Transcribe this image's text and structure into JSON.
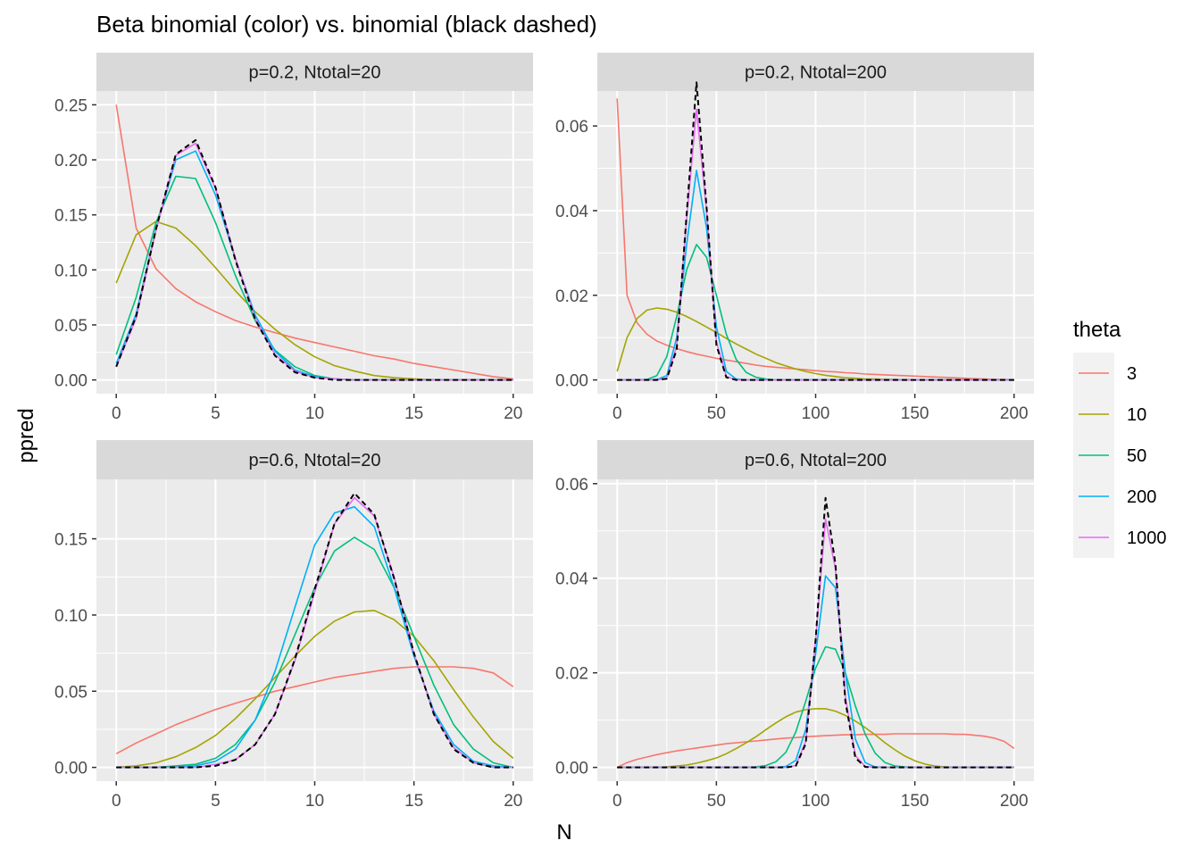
{
  "title": "Beta binomial (color) vs. binomial (black dashed)",
  "xlabel": "N",
  "ylabel": "ppred",
  "legend": {
    "title": "theta",
    "position": "right",
    "entries": [
      {
        "label": "3",
        "color": "#F8766D"
      },
      {
        "label": "10",
        "color": "#A3A500"
      },
      {
        "label": "50",
        "color": "#00BF7D"
      },
      {
        "label": "200",
        "color": "#00B0F6"
      },
      {
        "label": "1000",
        "color": "#E76BF3"
      }
    ]
  },
  "reference_line": {
    "label": "binomial",
    "color": "#000000",
    "style": "dashed"
  },
  "chart_data": [
    {
      "type": "line",
      "facet": "p=0.2, Ntotal=20",
      "p": 0.2,
      "n": 20,
      "xlim": [
        0,
        20
      ],
      "ylim": [
        0,
        0.25
      ],
      "x_ticks": [
        0,
        5,
        10,
        15,
        20
      ],
      "x_tick_labels": [
        "0",
        "5",
        "10",
        "15",
        "20"
      ],
      "y_ticks": [
        0,
        0.05,
        0.1,
        0.15,
        0.2,
        0.25
      ],
      "y_tick_labels": [
        "0.00",
        "0.05",
        "0.10",
        "0.15",
        "0.20",
        "0.25"
      ],
      "grid": true,
      "series": [
        {
          "name": "3",
          "theta": 3,
          "x_step": 1,
          "values": [
            0.25,
            0.138,
            0.101,
            0.083,
            0.071,
            0.062,
            0.054,
            0.048,
            0.043,
            0.038,
            0.034,
            0.03,
            0.026,
            0.022,
            0.019,
            0.015,
            0.012,
            0.009,
            0.006,
            0.003,
            0.001
          ]
        },
        {
          "name": "10",
          "theta": 10,
          "x_step": 1,
          "values": [
            0.088,
            0.132,
            0.144,
            0.138,
            0.122,
            0.102,
            0.081,
            0.062,
            0.046,
            0.032,
            0.021,
            0.013,
            0.008,
            0.004,
            0.002,
            0.001,
            0.0,
            0.0,
            0.0,
            0.0,
            0.0
          ]
        },
        {
          "name": "50",
          "theta": 50,
          "x_step": 1,
          "values": [
            0.023,
            0.075,
            0.143,
            0.185,
            0.183,
            0.143,
            0.095,
            0.054,
            0.027,
            0.012,
            0.004,
            0.001,
            0.0,
            0.0,
            0.0,
            0.0,
            0.0,
            0.0,
            0.0,
            0.0,
            0.0
          ]
        },
        {
          "name": "200",
          "theta": 200,
          "x_step": 1,
          "values": [
            0.015,
            0.06,
            0.137,
            0.2,
            0.208,
            0.168,
            0.11,
            0.059,
            0.026,
            0.009,
            0.003,
            0.001,
            0.0,
            0.0,
            0.0,
            0.0,
            0.0,
            0.0,
            0.0,
            0.0,
            0.0
          ]
        },
        {
          "name": "1000",
          "theta": 1000,
          "x_step": 1,
          "values": [
            0.012,
            0.056,
            0.136,
            0.204,
            0.215,
            0.174,
            0.111,
            0.056,
            0.023,
            0.008,
            0.002,
            0.001,
            0.0,
            0.0,
            0.0,
            0.0,
            0.0,
            0.0,
            0.0,
            0.0,
            0.0
          ]
        },
        {
          "name": "binomial",
          "x_step": 1,
          "values": [
            0.012,
            0.058,
            0.137,
            0.205,
            0.218,
            0.175,
            0.109,
            0.055,
            0.022,
            0.007,
            0.002,
            0.0,
            0.0,
            0.0,
            0.0,
            0.0,
            0.0,
            0.0,
            0.0,
            0.0,
            0.0
          ]
        }
      ]
    },
    {
      "type": "line",
      "facet": "p=0.2, Ntotal=200",
      "p": 0.2,
      "n": 200,
      "xlim": [
        0,
        200
      ],
      "ylim": [
        0,
        0.065
      ],
      "x_ticks": [
        0,
        50,
        100,
        150,
        200
      ],
      "x_tick_labels": [
        "0",
        "50",
        "100",
        "150",
        "200"
      ],
      "y_ticks": [
        0,
        0.02,
        0.04,
        0.06
      ],
      "y_tick_labels": [
        "0.00",
        "0.02",
        "0.04",
        "0.06"
      ],
      "grid": true,
      "series": [
        {
          "name": "3",
          "theta": 3,
          "x_step": 5,
          "values": [
            0.0665,
            0.02,
            0.0135,
            0.0108,
            0.0092,
            0.0082,
            0.0074,
            0.0067,
            0.0061,
            0.0056,
            0.0051,
            0.0047,
            0.0043,
            0.0039,
            0.0035,
            0.0032,
            0.003,
            0.0028,
            0.0026,
            0.0024,
            0.0022,
            0.002,
            0.0019,
            0.0017,
            0.0016,
            0.0014,
            0.0013,
            0.0012,
            0.0011,
            0.001,
            0.0009,
            0.0008,
            0.0007,
            0.0006,
            0.0005,
            0.0004,
            0.0003,
            0.0002,
            0.0001,
            0.0001,
            0.0
          ]
        },
        {
          "name": "10",
          "theta": 10,
          "x_step": 5,
          "values": [
            0.002,
            0.01,
            0.0145,
            0.0165,
            0.017,
            0.0167,
            0.016,
            0.015,
            0.0138,
            0.0125,
            0.0112,
            0.0098,
            0.0085,
            0.0073,
            0.0061,
            0.0051,
            0.0041,
            0.0033,
            0.0026,
            0.002,
            0.0015,
            0.0011,
            0.0008,
            0.0005,
            0.0004,
            0.0002,
            0.0002,
            0.0001,
            0.0001,
            0.0,
            0.0,
            0.0,
            0.0,
            0.0,
            0.0,
            0.0,
            0.0,
            0.0,
            0.0,
            0.0,
            0.0
          ]
        },
        {
          "name": "50",
          "theta": 50,
          "x_step": 5,
          "values": [
            0.0,
            0.0,
            0.0,
            0.0001,
            0.001,
            0.0055,
            0.015,
            0.026,
            0.032,
            0.029,
            0.02,
            0.0108,
            0.0048,
            0.0018,
            0.0006,
            0.0002,
            0.0,
            0.0,
            0.0,
            0.0,
            0.0,
            0.0,
            0.0,
            0.0,
            0.0,
            0.0,
            0.0,
            0.0,
            0.0,
            0.0,
            0.0,
            0.0,
            0.0,
            0.0,
            0.0,
            0.0,
            0.0,
            0.0,
            0.0,
            0.0,
            0.0
          ]
        },
        {
          "name": "200",
          "theta": 200,
          "x_step": 5,
          "values": [
            0.0,
            0.0,
            0.0,
            0.0,
            0.0001,
            0.001,
            0.01,
            0.032,
            0.0495,
            0.036,
            0.0125,
            0.002,
            0.0002,
            0.0,
            0.0,
            0.0,
            0.0,
            0.0,
            0.0,
            0.0,
            0.0,
            0.0,
            0.0,
            0.0,
            0.0,
            0.0,
            0.0,
            0.0,
            0.0,
            0.0,
            0.0,
            0.0,
            0.0,
            0.0,
            0.0,
            0.0,
            0.0,
            0.0,
            0.0,
            0.0,
            0.0
          ]
        },
        {
          "name": "1000",
          "theta": 1000,
          "x_step": 5,
          "values": [
            0.0,
            0.0,
            0.0,
            0.0,
            0.0,
            0.0004,
            0.008,
            0.038,
            0.064,
            0.04,
            0.009,
            0.0008,
            0.0,
            0.0,
            0.0,
            0.0,
            0.0,
            0.0,
            0.0,
            0.0,
            0.0,
            0.0,
            0.0,
            0.0,
            0.0,
            0.0,
            0.0,
            0.0,
            0.0,
            0.0,
            0.0,
            0.0,
            0.0,
            0.0,
            0.0,
            0.0,
            0.0,
            0.0,
            0.0,
            0.0,
            0.0
          ]
        },
        {
          "name": "binomial",
          "x_step": 5,
          "values": [
            0.0,
            0.0,
            0.0,
            0.0,
            0.0,
            0.0003,
            0.0072,
            0.039,
            0.0703,
            0.041,
            0.0082,
            0.0006,
            0.0,
            0.0,
            0.0,
            0.0,
            0.0,
            0.0,
            0.0,
            0.0,
            0.0,
            0.0,
            0.0,
            0.0,
            0.0,
            0.0,
            0.0,
            0.0,
            0.0,
            0.0,
            0.0,
            0.0,
            0.0,
            0.0,
            0.0,
            0.0,
            0.0,
            0.0,
            0.0,
            0.0,
            0.0
          ]
        }
      ]
    },
    {
      "type": "line",
      "facet": "p=0.6, Ntotal=20",
      "p": 0.6,
      "n": 20,
      "xlim": [
        0,
        20
      ],
      "ylim": [
        0,
        0.18
      ],
      "x_ticks": [
        0,
        5,
        10,
        15,
        20
      ],
      "x_tick_labels": [
        "0",
        "5",
        "10",
        "15",
        "20"
      ],
      "y_ticks": [
        0,
        0.05,
        0.1,
        0.15
      ],
      "y_tick_labels": [
        "0.00",
        "0.05",
        "0.10",
        "0.15"
      ],
      "grid": true,
      "series": [
        {
          "name": "3",
          "theta": 3,
          "x_step": 1,
          "values": [
            0.009,
            0.016,
            0.022,
            0.028,
            0.033,
            0.038,
            0.042,
            0.046,
            0.05,
            0.053,
            0.056,
            0.059,
            0.061,
            0.063,
            0.065,
            0.066,
            0.066,
            0.066,
            0.065,
            0.062,
            0.053
          ]
        },
        {
          "name": "10",
          "theta": 10,
          "x_step": 1,
          "values": [
            0.0,
            0.001,
            0.003,
            0.007,
            0.013,
            0.021,
            0.032,
            0.045,
            0.059,
            0.073,
            0.086,
            0.096,
            0.102,
            0.103,
            0.097,
            0.086,
            0.07,
            0.051,
            0.033,
            0.017,
            0.006
          ]
        },
        {
          "name": "50",
          "theta": 50,
          "x_step": 1,
          "values": [
            0.0,
            0.0,
            0.0,
            0.001,
            0.002,
            0.006,
            0.015,
            0.031,
            0.056,
            0.087,
            0.118,
            0.142,
            0.151,
            0.143,
            0.118,
            0.086,
            0.054,
            0.028,
            0.012,
            0.003,
            0.0
          ]
        },
        {
          "name": "200",
          "theta": 200,
          "x_step": 1,
          "values": [
            0.0,
            0.0,
            0.0,
            0.0,
            0.001,
            0.004,
            0.012,
            0.031,
            0.063,
            0.105,
            0.146,
            0.167,
            0.171,
            0.158,
            0.118,
            0.073,
            0.037,
            0.015,
            0.004,
            0.001,
            0.0
          ]
        },
        {
          "name": "1000",
          "theta": 1000,
          "x_step": 1,
          "values": [
            0.0,
            0.0,
            0.0,
            0.0,
            0.0,
            0.002,
            0.005,
            0.015,
            0.035,
            0.07,
            0.115,
            0.16,
            0.177,
            0.165,
            0.125,
            0.075,
            0.035,
            0.013,
            0.003,
            0.0,
            0.0
          ]
        },
        {
          "name": "binomial",
          "x_step": 1,
          "values": [
            0.0,
            0.0,
            0.0,
            0.0,
            0.0,
            0.001,
            0.005,
            0.015,
            0.035,
            0.071,
            0.117,
            0.16,
            0.18,
            0.166,
            0.124,
            0.075,
            0.035,
            0.012,
            0.003,
            0.0,
            0.0
          ]
        }
      ]
    },
    {
      "type": "line",
      "facet": "p=0.6, Ntotal=200",
      "p": 0.6,
      "n": 200,
      "xlim": [
        0,
        200
      ],
      "ylim": [
        0,
        0.058
      ],
      "x_ticks": [
        0,
        50,
        100,
        150,
        200
      ],
      "x_tick_labels": [
        "0",
        "50",
        "100",
        "150",
        "200"
      ],
      "y_ticks": [
        0,
        0.02,
        0.04,
        0.06
      ],
      "y_tick_labels": [
        "0.00",
        "0.02",
        "0.04",
        "0.06"
      ],
      "grid": true,
      "series": [
        {
          "name": "3",
          "theta": 3,
          "x_step": 5,
          "values": [
            0.0,
            0.001,
            0.0017,
            0.0022,
            0.0027,
            0.0031,
            0.0035,
            0.0038,
            0.0041,
            0.0044,
            0.0047,
            0.005,
            0.0052,
            0.0054,
            0.0056,
            0.0058,
            0.006,
            0.0062,
            0.0063,
            0.0065,
            0.0066,
            0.0067,
            0.0068,
            0.0069,
            0.0069,
            0.007,
            0.007,
            0.007,
            0.0071,
            0.0071,
            0.0071,
            0.0071,
            0.0071,
            0.0071,
            0.007,
            0.007,
            0.0068,
            0.0066,
            0.0062,
            0.0055,
            0.004
          ]
        },
        {
          "name": "10",
          "theta": 10,
          "x_step": 5,
          "values": [
            0.0,
            0.0,
            0.0,
            0.0,
            0.0,
            0.0001,
            0.0003,
            0.0005,
            0.0009,
            0.0014,
            0.002,
            0.0029,
            0.004,
            0.0052,
            0.0065,
            0.008,
            0.0094,
            0.0107,
            0.0117,
            0.0122,
            0.0124,
            0.0124,
            0.0119,
            0.011,
            0.0098,
            0.0084,
            0.0069,
            0.0052,
            0.0037,
            0.0024,
            0.0014,
            0.0007,
            0.0003,
            0.0001,
            0.0,
            0.0,
            0.0,
            0.0,
            0.0,
            0.0,
            0.0
          ]
        },
        {
          "name": "50",
          "theta": 50,
          "x_step": 5,
          "values": [
            0.0,
            0.0,
            0.0,
            0.0,
            0.0,
            0.0,
            0.0,
            0.0,
            0.0,
            0.0,
            0.0,
            0.0,
            0.0,
            0.0,
            0.0001,
            0.0004,
            0.0012,
            0.0032,
            0.0075,
            0.014,
            0.021,
            0.0255,
            0.025,
            0.02,
            0.013,
            0.007,
            0.003,
            0.001,
            0.0003,
            0.0001,
            0.0,
            0.0,
            0.0,
            0.0,
            0.0,
            0.0,
            0.0,
            0.0,
            0.0,
            0.0,
            0.0
          ]
        },
        {
          "name": "200",
          "theta": 200,
          "x_step": 5,
          "values": [
            0.0,
            0.0,
            0.0,
            0.0,
            0.0,
            0.0,
            0.0,
            0.0,
            0.0,
            0.0,
            0.0,
            0.0,
            0.0,
            0.0,
            0.0,
            0.0,
            0.0,
            0.0002,
            0.0015,
            0.008,
            0.024,
            0.0405,
            0.038,
            0.02,
            0.006,
            0.001,
            0.0001,
            0.0,
            0.0,
            0.0,
            0.0,
            0.0,
            0.0,
            0.0,
            0.0,
            0.0,
            0.0,
            0.0,
            0.0,
            0.0,
            0.0
          ]
        },
        {
          "name": "1000",
          "theta": 1000,
          "x_step": 5,
          "values": [
            0.0,
            0.0,
            0.0,
            0.0,
            0.0,
            0.0,
            0.0,
            0.0,
            0.0,
            0.0,
            0.0,
            0.0,
            0.0,
            0.0,
            0.0,
            0.0,
            0.0,
            0.0,
            0.0004,
            0.0055,
            0.027,
            0.0525,
            0.042,
            0.015,
            0.0025,
            0.0002,
            0.0,
            0.0,
            0.0,
            0.0,
            0.0,
            0.0,
            0.0,
            0.0,
            0.0,
            0.0,
            0.0,
            0.0,
            0.0,
            0.0,
            0.0
          ]
        },
        {
          "name": "binomial",
          "x_step": 5,
          "values": [
            0.0,
            0.0,
            0.0,
            0.0,
            0.0,
            0.0,
            0.0,
            0.0,
            0.0,
            0.0,
            0.0,
            0.0,
            0.0,
            0.0,
            0.0,
            0.0,
            0.0,
            0.0,
            0.0003,
            0.005,
            0.027,
            0.057,
            0.043,
            0.014,
            0.002,
            0.0001,
            0.0,
            0.0,
            0.0,
            0.0,
            0.0,
            0.0,
            0.0,
            0.0,
            0.0,
            0.0,
            0.0,
            0.0,
            0.0,
            0.0,
            0.0
          ]
        }
      ]
    }
  ]
}
